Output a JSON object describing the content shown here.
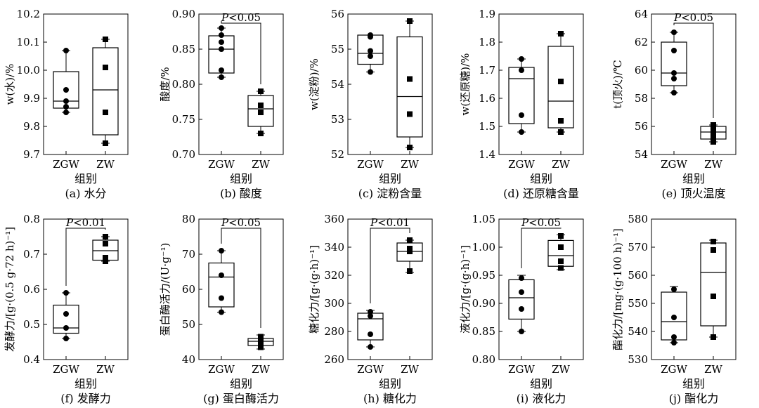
{
  "figure": {
    "x_axis_label": "组别",
    "categories": [
      "ZGW",
      "ZW"
    ]
  },
  "chart_data": [
    {
      "type": "box",
      "id": "a",
      "title": "(a) 水分",
      "ylabel": "w(水)/%",
      "xlabel": "组别",
      "categories": [
        "ZGW",
        "ZW"
      ],
      "ylim": [
        9.7,
        10.2
      ],
      "yticks": [
        "9.7",
        "9.8",
        "9.9",
        "10.0",
        "10.1",
        "10.2"
      ],
      "significance": null,
      "series": [
        {
          "name": "ZGW",
          "marker": "circle",
          "points": [
            9.85,
            9.87,
            9.89,
            9.93,
            10.07
          ],
          "box": {
            "q1": 9.865,
            "median": 9.89,
            "q3": 9.995,
            "min": 9.85,
            "max": 10.07
          }
        },
        {
          "name": "ZW",
          "marker": "square",
          "points": [
            9.74,
            9.85,
            10.01,
            10.11
          ],
          "box": {
            "q1": 9.77,
            "median": 9.93,
            "q3": 10.08,
            "min": 9.74,
            "max": 10.11
          }
        }
      ]
    },
    {
      "type": "box",
      "id": "b",
      "title": "(b) 酸度",
      "ylabel": "酸度/%",
      "xlabel": "组别",
      "categories": [
        "ZGW",
        "ZW"
      ],
      "ylim": [
        0.7,
        0.9
      ],
      "yticks": [
        "0.70",
        "0.75",
        "0.80",
        "0.85",
        "0.90"
      ],
      "significance": "P<0.05",
      "series": [
        {
          "name": "ZGW",
          "marker": "circle",
          "points": [
            0.81,
            0.82,
            0.85,
            0.86,
            0.87,
            0.88
          ],
          "box": {
            "q1": 0.816,
            "median": 0.85,
            "q3": 0.869,
            "min": 0.81,
            "max": 0.88
          }
        },
        {
          "name": "ZW",
          "marker": "square",
          "points": [
            0.73,
            0.76,
            0.77,
            0.79
          ],
          "box": {
            "q1": 0.74,
            "median": 0.765,
            "q3": 0.784,
            "min": 0.73,
            "max": 0.79
          }
        }
      ]
    },
    {
      "type": "box",
      "id": "c",
      "title": "(c) 淀粉含量",
      "ylabel": "w(淀粉)/%",
      "xlabel": "组别",
      "categories": [
        "ZGW",
        "ZW"
      ],
      "ylim": [
        52,
        56
      ],
      "yticks": [
        "52",
        "53",
        "54",
        "55",
        "56"
      ],
      "significance": null,
      "series": [
        {
          "name": "ZGW",
          "marker": "circle",
          "points": [
            54.35,
            54.8,
            54.95,
            55.35,
            55.4
          ],
          "box": {
            "q1": 54.57,
            "median": 54.88,
            "q3": 55.4,
            "min": 54.35,
            "max": 55.4
          }
        },
        {
          "name": "ZW",
          "marker": "square",
          "points": [
            52.2,
            53.15,
            54.15,
            55.8
          ],
          "box": {
            "q1": 52.5,
            "median": 53.65,
            "q3": 55.35,
            "min": 52.2,
            "max": 55.8
          }
        }
      ]
    },
    {
      "type": "box",
      "id": "d",
      "title": "(d) 还原糖含量",
      "ylabel": "w(还原糖)/%",
      "xlabel": "组别",
      "categories": [
        "ZGW",
        "ZW"
      ],
      "ylim": [
        1.4,
        1.9
      ],
      "yticks": [
        "1.4",
        "1.5",
        "1.6",
        "1.7",
        "1.8",
        "1.9"
      ],
      "significance": null,
      "series": [
        {
          "name": "ZGW",
          "marker": "circle",
          "points": [
            1.48,
            1.54,
            1.7,
            1.74
          ],
          "box": {
            "q1": 1.51,
            "median": 1.67,
            "q3": 1.71,
            "min": 1.48,
            "max": 1.74
          }
        },
        {
          "name": "ZW",
          "marker": "square",
          "points": [
            1.48,
            1.52,
            1.66,
            1.83
          ],
          "box": {
            "q1": 1.495,
            "median": 1.59,
            "q3": 1.785,
            "min": 1.48,
            "max": 1.83
          }
        }
      ]
    },
    {
      "type": "box",
      "id": "e",
      "title": "(e) 顶火温度",
      "ylabel": "t(顶火)/℃",
      "xlabel": "组别",
      "categories": [
        "ZGW",
        "ZW"
      ],
      "ylim": [
        54,
        64
      ],
      "yticks": [
        "54",
        "56",
        "58",
        "60",
        "62",
        "64"
      ],
      "significance": "P<0.05",
      "series": [
        {
          "name": "ZGW",
          "marker": "circle",
          "points": [
            58.4,
            59.4,
            59.8,
            61.4,
            62.7
          ],
          "box": {
            "q1": 58.9,
            "median": 59.8,
            "q3": 62.0,
            "min": 58.4,
            "max": 62.7
          }
        },
        {
          "name": "ZW",
          "marker": "square",
          "points": [
            54.9,
            55.3,
            55.7,
            56.1
          ],
          "box": {
            "q1": 55.1,
            "median": 55.6,
            "q3": 56.0,
            "min": 54.9,
            "max": 56.1
          }
        }
      ]
    },
    {
      "type": "box",
      "id": "f",
      "title": "(f) 发酵力",
      "ylabel": "发酵力/[g·(0.5 g·72 h)⁻¹]",
      "xlabel": "组别",
      "categories": [
        "ZGW",
        "ZW"
      ],
      "ylim": [
        0.4,
        0.8
      ],
      "yticks": [
        "0.4",
        "0.5",
        "0.6",
        "0.7",
        "0.8"
      ],
      "significance": "P<0.01",
      "series": [
        {
          "name": "ZGW",
          "marker": "circle",
          "points": [
            0.46,
            0.49,
            0.53,
            0.59
          ],
          "box": {
            "q1": 0.475,
            "median": 0.49,
            "q3": 0.555,
            "min": 0.46,
            "max": 0.59
          }
        },
        {
          "name": "ZW",
          "marker": "square",
          "points": [
            0.68,
            0.69,
            0.73,
            0.75
          ],
          "box": {
            "q1": 0.683,
            "median": 0.71,
            "q3": 0.74,
            "min": 0.68,
            "max": 0.75
          }
        }
      ]
    },
    {
      "type": "box",
      "id": "g",
      "title": "(g) 蛋白酶活力",
      "ylabel": "蛋白酶活力/(U·g⁻¹)",
      "xlabel": "组别",
      "categories": [
        "ZGW",
        "ZW"
      ],
      "ylim": [
        40,
        80
      ],
      "yticks": [
        "40",
        "50",
        "60",
        "70",
        "80"
      ],
      "significance": "P<0.05",
      "series": [
        {
          "name": "ZGW",
          "marker": "circle",
          "points": [
            53.5,
            57.5,
            64.0,
            71.0
          ],
          "box": {
            "q1": 55.0,
            "median": 63.5,
            "q3": 67.5,
            "min": 53.5,
            "max": 71.0
          }
        },
        {
          "name": "ZW",
          "marker": "square",
          "points": [
            43.5,
            45.0,
            45.5,
            46.5
          ],
          "box": {
            "q1": 44.0,
            "median": 45.2,
            "q3": 46.0,
            "min": 43.0,
            "max": 47.0
          }
        }
      ]
    },
    {
      "type": "box",
      "id": "h",
      "title": "(h) 糖化力",
      "ylabel": "糖化力/[g·(g·h)⁻¹]",
      "xlabel": "组别",
      "categories": [
        "ZGW",
        "ZW"
      ],
      "ylim": [
        260,
        360
      ],
      "yticks": [
        "260",
        "280",
        "300",
        "320",
        "340",
        "360"
      ],
      "significance": "P<0.01",
      "series": [
        {
          "name": "ZGW",
          "marker": "circle",
          "points": [
            269,
            278,
            291,
            294
          ],
          "box": {
            "q1": 274,
            "median": 289,
            "q3": 293,
            "min": 269,
            "max": 295
          }
        },
        {
          "name": "ZW",
          "marker": "square",
          "points": [
            323,
            337,
            339,
            345
          ],
          "box": {
            "q1": 330,
            "median": 337,
            "q3": 343,
            "min": 322,
            "max": 345
          }
        }
      ]
    },
    {
      "type": "box",
      "id": "i",
      "title": "(i) 液化力",
      "ylabel": "液化力/[g·(g·h)⁻¹]",
      "xlabel": "组别",
      "categories": [
        "ZGW",
        "ZW"
      ],
      "ylim": [
        0.8,
        1.05
      ],
      "yticks": [
        "0.80",
        "0.85",
        "0.90",
        "0.95",
        "1.00",
        "1.05"
      ],
      "significance": "P<0.05",
      "series": [
        {
          "name": "ZGW",
          "marker": "circle",
          "points": [
            0.85,
            0.89,
            0.92,
            0.945
          ],
          "box": {
            "q1": 0.872,
            "median": 0.91,
            "q3": 0.942,
            "min": 0.85,
            "max": 0.95
          }
        },
        {
          "name": "ZW",
          "marker": "square",
          "points": [
            0.963,
            0.975,
            1.0,
            1.02
          ],
          "box": {
            "q1": 0.966,
            "median": 0.985,
            "q3": 1.012,
            "min": 0.96,
            "max": 1.022
          }
        }
      ]
    },
    {
      "type": "box",
      "id": "j",
      "title": "(j) 酯化力",
      "ylabel": "酯化力/[mg·(g·100 h)⁻¹]",
      "xlabel": "组别",
      "categories": [
        "ZGW",
        "ZW"
      ],
      "ylim": [
        530,
        580
      ],
      "yticks": [
        "530",
        "540",
        "550",
        "560",
        "570",
        "580"
      ],
      "significance": null,
      "series": [
        {
          "name": "ZGW",
          "marker": "circle",
          "points": [
            536,
            538,
            545,
            555
          ],
          "box": {
            "q1": 537,
            "median": 543.5,
            "q3": 554,
            "min": 536,
            "max": 556
          }
        },
        {
          "name": "ZW",
          "marker": "square",
          "points": [
            538,
            552.5,
            569,
            572
          ],
          "box": {
            "q1": 542,
            "median": 561,
            "q3": 571.5,
            "min": 538,
            "max": 572.5
          }
        }
      ]
    }
  ]
}
